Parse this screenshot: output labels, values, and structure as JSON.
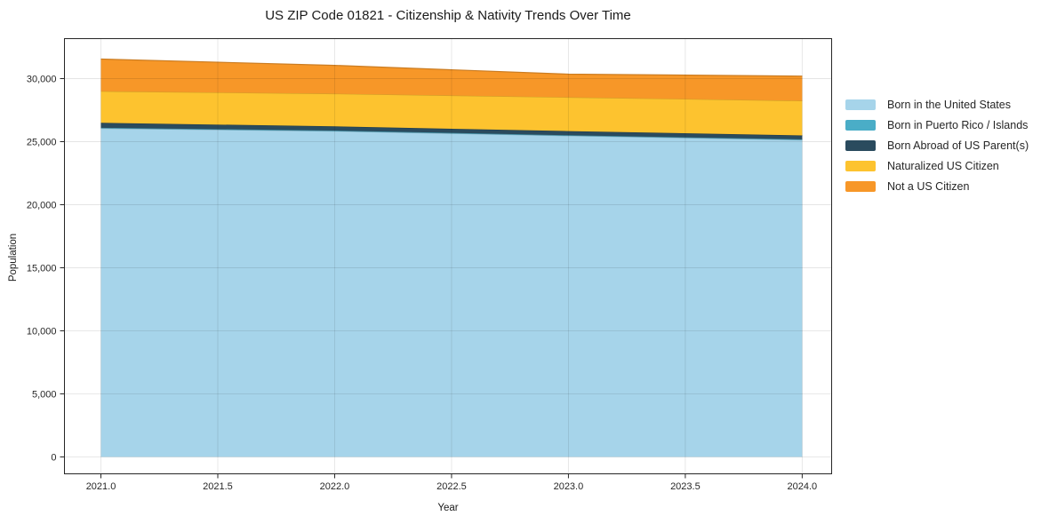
{
  "chart_data": {
    "type": "area",
    "stacked": true,
    "title": "US ZIP Code 01821 - Citizenship & Nativity Trends Over Time",
    "xlabel": "Year",
    "ylabel": "Population",
    "x": [
      2021,
      2022,
      2023,
      2024
    ],
    "series": [
      {
        "name": "Born in the United States",
        "color": "#a6d4ea",
        "values": [
          26060,
          25840,
          25470,
          25140
        ]
      },
      {
        "name": "Born in Puerto Rico / Islands",
        "color": "#4aadc7",
        "values": [
          40,
          40,
          40,
          40
        ]
      },
      {
        "name": "Born Abroad of US Parent(s)",
        "color": "#2a4b5e",
        "values": [
          390,
          330,
          330,
          310
        ]
      },
      {
        "name": "Naturalized US Citizen",
        "color": "#fdc32f",
        "values": [
          2510,
          2590,
          2680,
          2760
        ]
      },
      {
        "name": "Not a US Citizen",
        "color": "#f79728",
        "values": [
          2550,
          2250,
          1830,
          1950
        ]
      }
    ],
    "stack_totals": [
      31550,
      31050,
      30350,
      30200
    ],
    "x_ticks": [
      2021.0,
      2021.5,
      2022.0,
      2022.5,
      2023.0,
      2023.5,
      2024.0
    ],
    "x_tick_labels": [
      "2021.0",
      "2021.5",
      "2022.0",
      "2022.5",
      "2023.0",
      "2023.5",
      "2024.0"
    ],
    "y_ticks": [
      0,
      5000,
      10000,
      15000,
      20000,
      25000,
      30000
    ],
    "y_tick_labels": [
      "0",
      "5,000",
      "10,000",
      "15,000",
      "20,000",
      "25,000",
      "30,000"
    ],
    "xlim": [
      2020.844,
      2024.126
    ],
    "ylim": [
      -1340,
      33170
    ],
    "grid": true,
    "legend_position": "right",
    "background_color": "#ffffff",
    "spine_color": "#262626",
    "grid_color": "rgba(0,0,0,0.10)"
  }
}
